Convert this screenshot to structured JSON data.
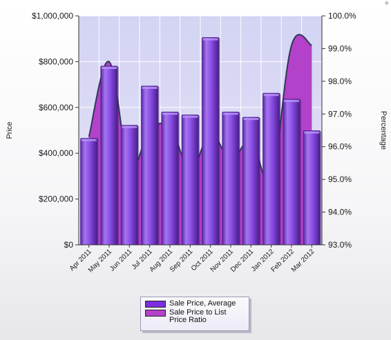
{
  "chart_data": {
    "type": "bar",
    "title": "",
    "categories": [
      "Apr 2011",
      "May 2011",
      "Jun 2011",
      "Jul 2011",
      "Aug 2011",
      "Sep 2011",
      "Oct 2011",
      "Nov 2011",
      "Dec 2011",
      "Jan 2012",
      "Feb 2012",
      "Mar 2012"
    ],
    "series": [
      {
        "name": "Sale Price, Average",
        "type": "bar",
        "axis": "left",
        "color": "#8a4de6",
        "values": [
          465000,
          780000,
          522000,
          693000,
          580000,
          567000,
          905000,
          580000,
          557000,
          662000,
          636000,
          498000
        ]
      },
      {
        "name": "Sale Price to List Price Ratio",
        "type": "area",
        "axis": "right",
        "color": "#b341c9",
        "values": [
          96.3,
          98.6,
          95.4,
          96.5,
          96.6,
          95.3,
          96.4,
          95.6,
          96.2,
          95.0,
          99.1,
          99.1
        ]
      }
    ],
    "ylabel": "Price",
    "y2label": "Percentage",
    "ylim": [
      0,
      1000000
    ],
    "y2lim": [
      93.0,
      100.0
    ],
    "yticks": [
      "$0",
      "$200,000",
      "$400,000",
      "$600,000",
      "$800,000",
      "$1,000,000"
    ],
    "y2ticks": [
      "93.0%",
      "94.0%",
      "95.0%",
      "96.0%",
      "97.0%",
      "98.0%",
      "99.0%",
      "100.0%"
    ],
    "grid": true,
    "legend_position": "bottom-center"
  },
  "legend": {
    "items": [
      {
        "label": "Sale Price, Average",
        "color": "#7b2ee0"
      },
      {
        "label": "Sale Price to List Price Ratio",
        "color": "#b341c9"
      }
    ]
  },
  "colors": {
    "plot_bg": "#dcdcf4",
    "grid": "#ffffff",
    "bar_main": "#8a4de6",
    "bar_dark": "#4d1f8f",
    "bar_light": "#b693f2",
    "area_fill": "#b341c9",
    "area_line": "#2e3a52"
  },
  "corner_glyph": "✧"
}
